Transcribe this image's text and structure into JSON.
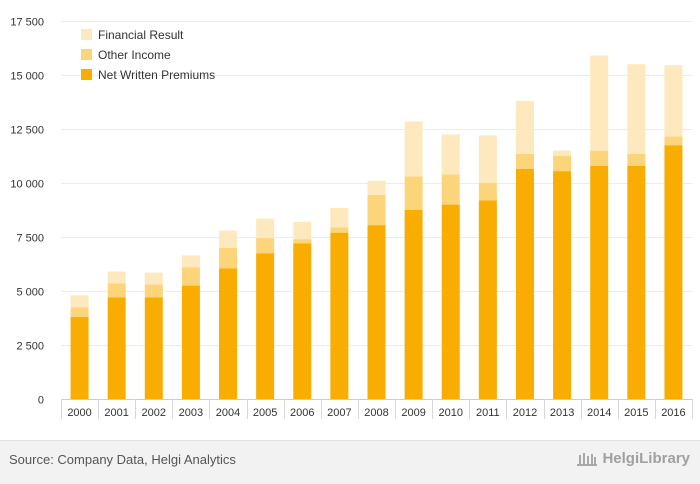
{
  "chart_data": {
    "type": "bar",
    "stacked": true,
    "categories": [
      "2000",
      "2001",
      "2002",
      "2003",
      "2004",
      "2005",
      "2006",
      "2007",
      "2008",
      "2009",
      "2010",
      "2011",
      "2012",
      "2013",
      "2014",
      "2015",
      "2016"
    ],
    "series": [
      {
        "name": "Net Written Premiums",
        "color": "#f9ad00",
        "values": [
          3800,
          4700,
          4700,
          5250,
          6050,
          6750,
          7200,
          7700,
          8050,
          8750,
          9000,
          9200,
          10650,
          10550,
          10800,
          10800,
          11750
        ]
      },
      {
        "name": "Other Income",
        "color": "#fcd47a",
        "values": [
          450,
          650,
          600,
          850,
          950,
          700,
          200,
          250,
          1400,
          1550,
          1400,
          800,
          700,
          700,
          700,
          550,
          400
        ]
      },
      {
        "name": "Financial Result",
        "color": "#fde9bd",
        "values": [
          550,
          550,
          550,
          550,
          800,
          900,
          800,
          900,
          650,
          2550,
          1850,
          2200,
          2450,
          250,
          4400,
          4150,
          3300
        ]
      }
    ],
    "y_ticks": [
      0,
      2500,
      5000,
      7500,
      10000,
      12500,
      15000,
      17500
    ],
    "y_tick_labels": [
      "0",
      "2 500",
      "5 000",
      "7 500",
      "10 000",
      "12 500",
      "15 000",
      "17 500"
    ],
    "ylim": [
      0,
      17500
    ],
    "grid": true,
    "legend_position": "top-left"
  },
  "footer": {
    "source": "Source: Company Data, Helgi Analytics",
    "brand": "HelgiLibrary"
  }
}
